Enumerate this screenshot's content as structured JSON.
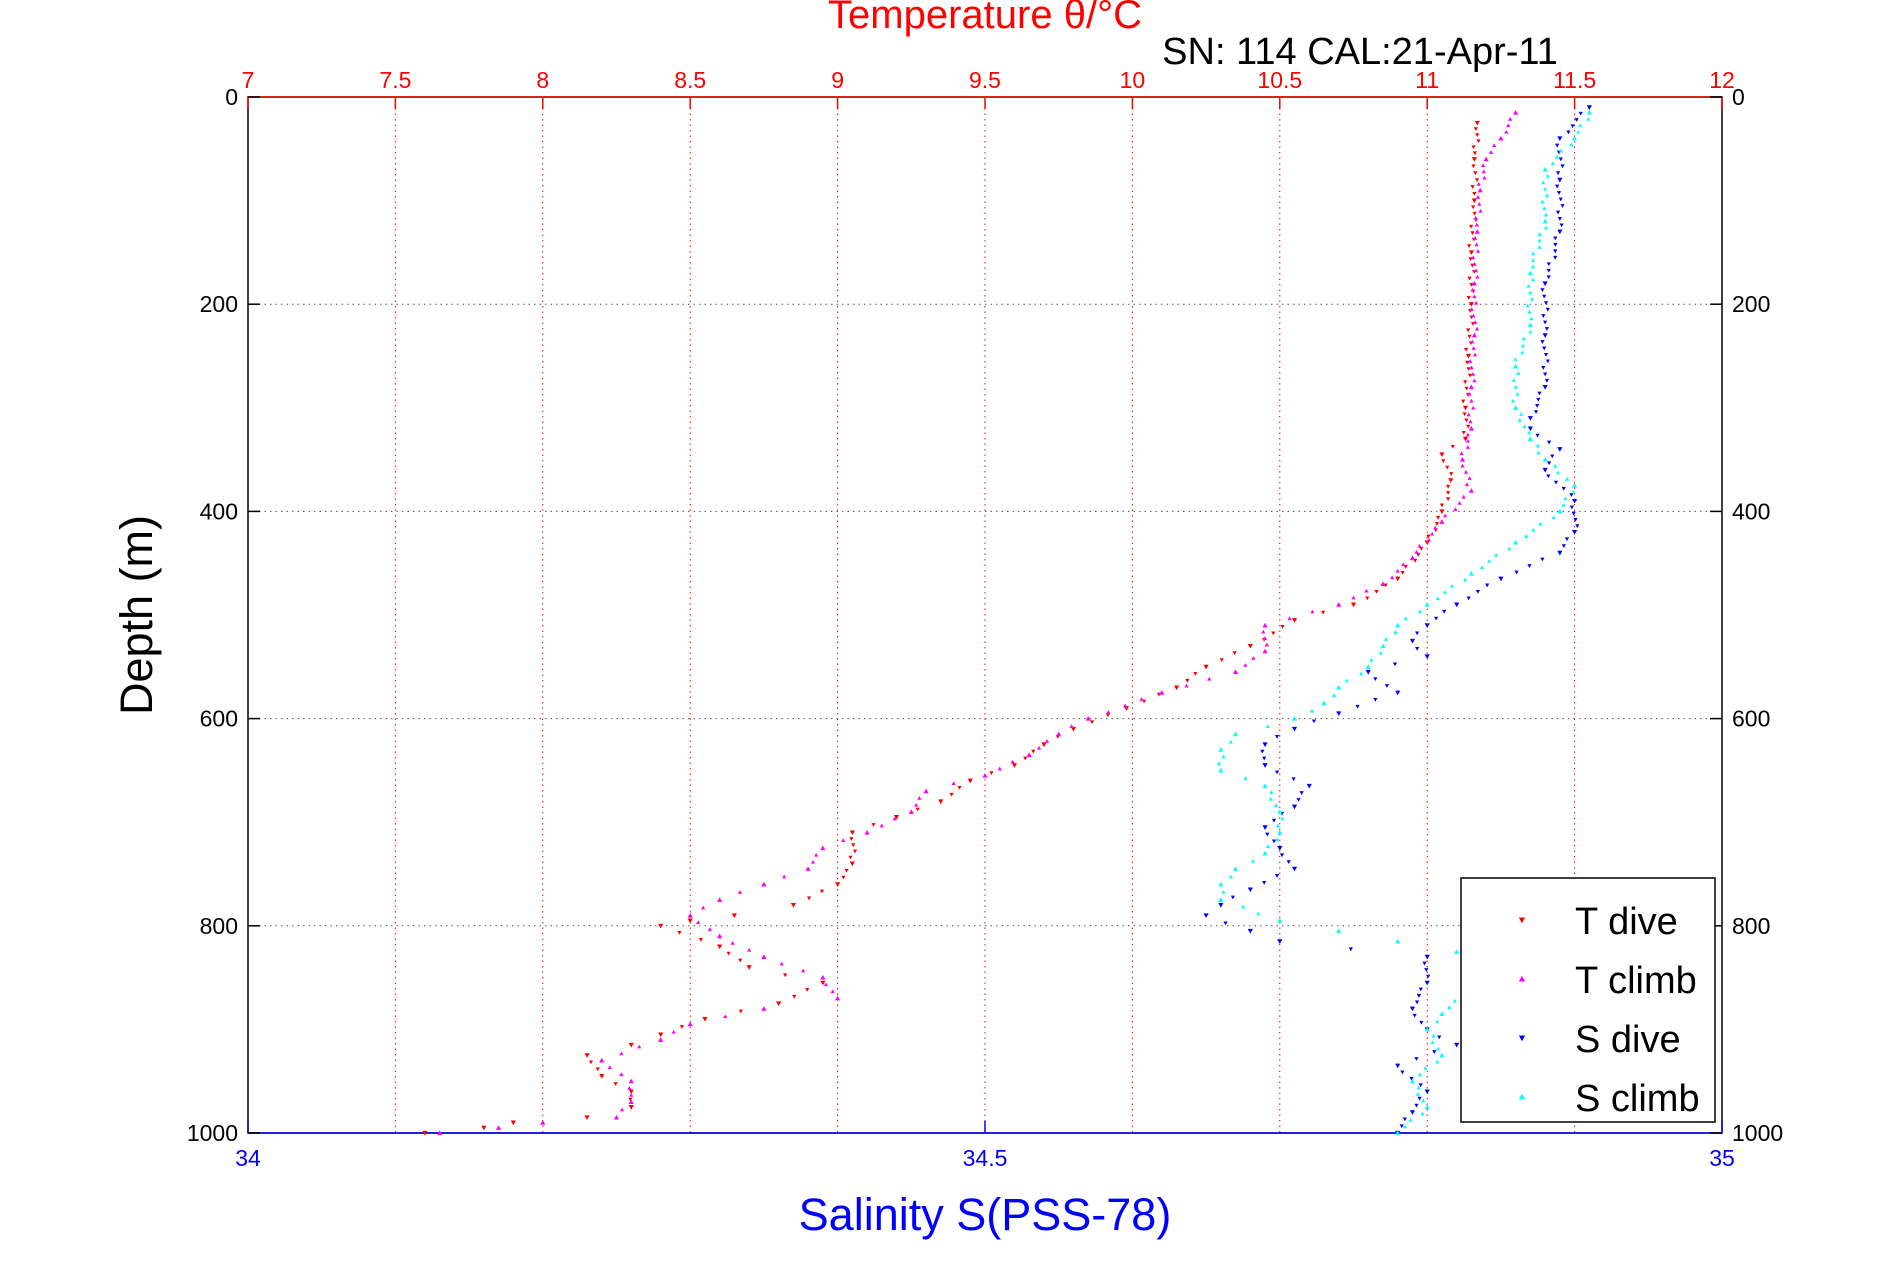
{
  "chart_data": {
    "type": "scatter",
    "top_title": "Temperature θ/°C",
    "subtitle": "SN: 114  CAL:21-Apr-11",
    "ylabel": "Depth (m)",
    "bottom_xlabel": "Salinity S(PSS-78)",
    "colors": {
      "temperature_axis": "#ff0000",
      "salinity_axis": "#0000ff",
      "t_dive": "#ff0000",
      "t_climb": "#ff00ff",
      "s_dive": "#0000ff",
      "s_climb": "#00ffff",
      "grid_temperature": "#ff0000",
      "grid_depth": "#555555"
    },
    "axes": {
      "temperature": {
        "range": [
          7,
          12
        ],
        "ticks": [
          "7",
          "7.5",
          "8",
          "8.5",
          "9",
          "9.5",
          "10",
          "10.5",
          "11",
          "11.5",
          "12"
        ],
        "tick_values": [
          7,
          7.5,
          8,
          8.5,
          9,
          9.5,
          10,
          10.5,
          11,
          11.5,
          12
        ]
      },
      "salinity": {
        "range": [
          34,
          35
        ],
        "ticks": [
          "34",
          "34.5",
          "35"
        ],
        "tick_values": [
          34,
          34.5,
          35
        ]
      },
      "depth": {
        "range": [
          0,
          1000
        ],
        "reversed": true,
        "ticks": [
          "0",
          "200",
          "400",
          "600",
          "800",
          "1000"
        ],
        "tick_values": [
          0,
          200,
          400,
          600,
          800,
          1000
        ]
      }
    },
    "grid": true,
    "legend_position": "bottom-right",
    "series": [
      {
        "name": "T dive",
        "axis": "temperature",
        "marker": "triangle-down",
        "points": [
          [
            11.17,
            25
          ],
          [
            11.16,
            60
          ],
          [
            11.16,
            100
          ],
          [
            11.15,
            150
          ],
          [
            11.15,
            200
          ],
          [
            11.14,
            250
          ],
          [
            11.13,
            300
          ],
          [
            11.13,
            330
          ],
          [
            11.05,
            345
          ],
          [
            11.08,
            370
          ],
          [
            11.05,
            400
          ],
          [
            11.0,
            430
          ],
          [
            10.9,
            465
          ],
          [
            10.75,
            490
          ],
          [
            10.55,
            505
          ],
          [
            10.4,
            530
          ],
          [
            10.25,
            550
          ],
          [
            10.15,
            570
          ],
          [
            9.98,
            590
          ],
          [
            9.8,
            610
          ],
          [
            9.7,
            625
          ],
          [
            9.6,
            645
          ],
          [
            9.45,
            660
          ],
          [
            9.35,
            680
          ],
          [
            9.2,
            695
          ],
          [
            9.05,
            710
          ],
          [
            9.05,
            740
          ],
          [
            9.0,
            760
          ],
          [
            8.85,
            780
          ],
          [
            8.65,
            790
          ],
          [
            8.5,
            795
          ],
          [
            8.4,
            800
          ],
          [
            8.6,
            820
          ],
          [
            8.7,
            840
          ],
          [
            8.95,
            855
          ],
          [
            8.8,
            875
          ],
          [
            8.55,
            890
          ],
          [
            8.4,
            905
          ],
          [
            8.3,
            915
          ],
          [
            8.15,
            925
          ],
          [
            8.2,
            945
          ],
          [
            8.3,
            960
          ],
          [
            8.3,
            975
          ],
          [
            8.15,
            985
          ],
          [
            7.9,
            990
          ],
          [
            7.8,
            995
          ],
          [
            7.6,
            1000
          ]
        ]
      },
      {
        "name": "T climb",
        "axis": "temperature",
        "marker": "triangle-up",
        "points": [
          [
            11.3,
            15
          ],
          [
            11.25,
            40
          ],
          [
            11.2,
            60
          ],
          [
            11.18,
            90
          ],
          [
            11.17,
            130
          ],
          [
            11.16,
            180
          ],
          [
            11.16,
            230
          ],
          [
            11.15,
            280
          ],
          [
            11.15,
            320
          ],
          [
            11.12,
            350
          ],
          [
            11.15,
            380
          ],
          [
            11.05,
            410
          ],
          [
            10.95,
            445
          ],
          [
            10.85,
            470
          ],
          [
            10.7,
            490
          ],
          [
            10.45,
            510
          ],
          [
            10.45,
            535
          ],
          [
            10.35,
            555
          ],
          [
            10.1,
            575
          ],
          [
            9.85,
            600
          ],
          [
            9.75,
            615
          ],
          [
            9.65,
            635
          ],
          [
            9.5,
            655
          ],
          [
            9.3,
            670
          ],
          [
            9.25,
            690
          ],
          [
            9.1,
            710
          ],
          [
            8.95,
            725
          ],
          [
            8.9,
            745
          ],
          [
            8.75,
            760
          ],
          [
            8.6,
            775
          ],
          [
            8.5,
            790
          ],
          [
            8.6,
            810
          ],
          [
            8.75,
            830
          ],
          [
            8.95,
            850
          ],
          [
            9.0,
            870
          ],
          [
            8.75,
            880
          ],
          [
            8.5,
            895
          ],
          [
            8.4,
            910
          ],
          [
            8.2,
            930
          ],
          [
            8.3,
            950
          ],
          [
            8.3,
            970
          ],
          [
            8.25,
            985
          ],
          [
            8.0,
            990
          ],
          [
            7.85,
            995
          ],
          [
            7.65,
            1000
          ]
        ]
      },
      {
        "name": "S dive",
        "axis": "salinity",
        "marker": "triangle-down",
        "points": [
          [
            34.91,
            10
          ],
          [
            34.89,
            40
          ],
          [
            34.89,
            80
          ],
          [
            34.89,
            130
          ],
          [
            34.88,
            180
          ],
          [
            34.88,
            230
          ],
          [
            34.88,
            280
          ],
          [
            34.87,
            310
          ],
          [
            34.87,
            320
          ],
          [
            34.89,
            340
          ],
          [
            34.88,
            360
          ],
          [
            34.9,
            390
          ],
          [
            34.9,
            420
          ],
          [
            34.89,
            440
          ],
          [
            34.85,
            465
          ],
          [
            34.82,
            490
          ],
          [
            34.8,
            510
          ],
          [
            34.79,
            525
          ],
          [
            34.8,
            540
          ],
          [
            34.76,
            555
          ],
          [
            34.78,
            575
          ],
          [
            34.74,
            595
          ],
          [
            34.71,
            610
          ],
          [
            34.69,
            625
          ],
          [
            34.69,
            645
          ],
          [
            34.72,
            665
          ],
          [
            34.71,
            685
          ],
          [
            34.69,
            705
          ],
          [
            34.7,
            725
          ],
          [
            34.71,
            745
          ],
          [
            34.68,
            765
          ],
          [
            34.66,
            780
          ],
          [
            34.65,
            790
          ],
          [
            34.68,
            805
          ],
          [
            34.7,
            815
          ],
          [
            34.8,
            830
          ],
          [
            34.8,
            855
          ],
          [
            34.79,
            880
          ],
          [
            34.8,
            900
          ],
          [
            34.82,
            915
          ],
          [
            34.78,
            935
          ],
          [
            34.8,
            960
          ],
          [
            34.79,
            980
          ],
          [
            34.78,
            1000
          ]
        ]
      },
      {
        "name": "S climb",
        "axis": "salinity",
        "marker": "triangle-up",
        "points": [
          [
            34.91,
            15
          ],
          [
            34.9,
            40
          ],
          [
            34.88,
            70
          ],
          [
            34.88,
            120
          ],
          [
            34.87,
            170
          ],
          [
            34.87,
            220
          ],
          [
            34.86,
            260
          ],
          [
            34.86,
            300
          ],
          [
            34.87,
            330
          ],
          [
            34.88,
            350
          ],
          [
            34.9,
            375
          ],
          [
            34.89,
            400
          ],
          [
            34.86,
            430
          ],
          [
            34.83,
            460
          ],
          [
            34.8,
            490
          ],
          [
            34.78,
            510
          ],
          [
            34.77,
            530
          ],
          [
            34.76,
            550
          ],
          [
            34.74,
            570
          ],
          [
            34.73,
            585
          ],
          [
            34.71,
            600
          ],
          [
            34.67,
            615
          ],
          [
            34.66,
            630
          ],
          [
            34.66,
            650
          ],
          [
            34.69,
            665
          ],
          [
            34.7,
            690
          ],
          [
            34.7,
            710
          ],
          [
            34.69,
            730
          ],
          [
            34.67,
            745
          ],
          [
            34.66,
            760
          ],
          [
            34.66,
            775
          ],
          [
            34.7,
            795
          ],
          [
            34.74,
            805
          ],
          [
            34.78,
            815
          ],
          [
            34.82,
            825
          ],
          [
            34.85,
            840
          ],
          [
            34.83,
            860
          ],
          [
            34.81,
            885
          ],
          [
            34.8,
            900
          ],
          [
            34.81,
            925
          ],
          [
            34.79,
            950
          ],
          [
            34.8,
            975
          ],
          [
            34.78,
            1000
          ]
        ]
      }
    ]
  }
}
